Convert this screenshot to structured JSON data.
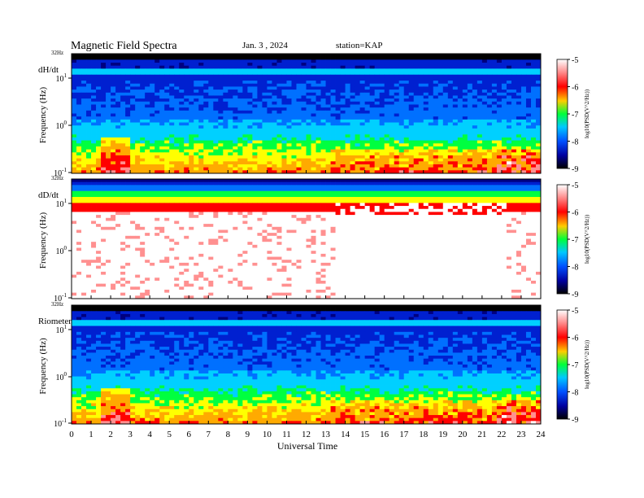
{
  "header": {
    "title": "Magnetic  Field  Spectra",
    "date": "Jan.  3  , 2024",
    "station": "station=KAP"
  },
  "chart_data": [
    {
      "type": "heatmap",
      "panel_label": "dH/dt",
      "ylabel": "Frequency  (Hz)",
      "xlabel": "",
      "top_freq_label": "32Hz",
      "yticks": [
        {
          "base": "10",
          "exp": "1"
        },
        {
          "base": "10",
          "exp": "0"
        },
        {
          "base": "10",
          "exp": "-1"
        }
      ],
      "xlim": [
        0,
        24
      ],
      "colorbar": {
        "label": "log10(PSD(V^2/Hz))",
        "ticks": [
          "-5",
          "-6",
          "-7",
          "-8",
          "-9"
        ],
        "range": [
          -9,
          -5
        ]
      }
    },
    {
      "type": "heatmap",
      "panel_label": "dD/dt",
      "ylabel": "Frequency  (Hz)",
      "xlabel": "",
      "top_freq_label": "32Hz",
      "yticks": [
        {
          "base": "10",
          "exp": "1"
        },
        {
          "base": "10",
          "exp": "0"
        },
        {
          "base": "10",
          "exp": "-1"
        }
      ],
      "xlim": [
        0,
        24
      ],
      "colorbar": {
        "label": "log10(PSD(V^2/Hz))",
        "ticks": [
          "-5",
          "-6",
          "-7",
          "-8",
          "-9"
        ],
        "range": [
          -9,
          -5
        ]
      }
    },
    {
      "type": "heatmap",
      "panel_label": "Riometer",
      "ylabel": "Frequency  (Hz)",
      "xlabel": "Universal  Time",
      "top_freq_label": "32Hz",
      "yticks": [
        {
          "base": "10",
          "exp": "1"
        },
        {
          "base": "10",
          "exp": "0"
        },
        {
          "base": "10",
          "exp": "-1"
        }
      ],
      "xlim": [
        0,
        24
      ],
      "xticks": [
        "0",
        "1",
        "2",
        "3",
        "4",
        "5",
        "6",
        "7",
        "8",
        "9",
        "10",
        "11",
        "12",
        "13",
        "14",
        "15",
        "16",
        "17",
        "18",
        "19",
        "20",
        "21",
        "22",
        "23",
        "24"
      ],
      "colorbar": {
        "label": "log10(PSD(V^2/Hz))",
        "ticks": [
          "-5",
          "-6",
          "-7",
          "-8",
          "-9"
        ],
        "range": [
          -9,
          -5
        ]
      }
    }
  ]
}
